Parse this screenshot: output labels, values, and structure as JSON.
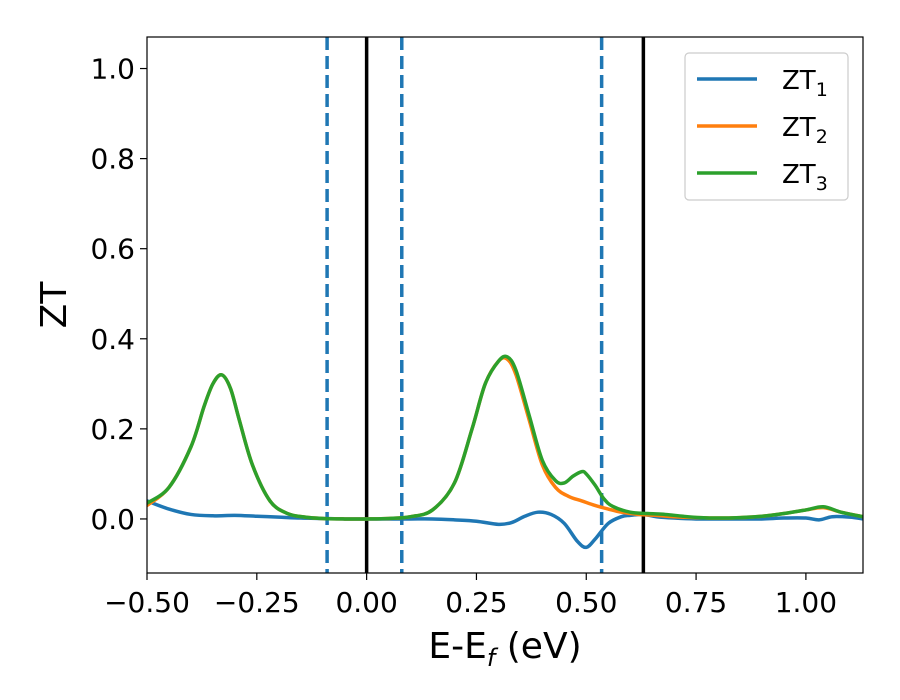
{
  "chart_data": {
    "type": "line",
    "xlabel_main": "E-E",
    "xlabel_sub": "f",
    "xlabel_unit": " (eV)",
    "ylabel": "ZT",
    "xlim": [
      -0.5,
      1.13
    ],
    "ylim": [
      -0.12,
      1.07
    ],
    "xticks": [
      -0.5,
      -0.25,
      0.0,
      0.25,
      0.5,
      0.75,
      1.0
    ],
    "xtick_labels": [
      "−0.50",
      "−0.25",
      "0.00",
      "0.25",
      "0.50",
      "0.75",
      "1.00"
    ],
    "yticks": [
      0.0,
      0.2,
      0.4,
      0.6,
      0.8,
      1.0
    ],
    "ytick_labels": [
      "0.0",
      "0.2",
      "0.4",
      "0.6",
      "0.8",
      "1.0"
    ],
    "legend_position": "top-right",
    "grid": false,
    "vertical_lines": [
      {
        "x": -0.09,
        "style": "dashed",
        "color": "#1f77b4"
      },
      {
        "x": 0.0,
        "style": "solid",
        "color": "#000000"
      },
      {
        "x": 0.08,
        "style": "dashed",
        "color": "#1f77b4"
      },
      {
        "x": 0.535,
        "style": "dashed",
        "color": "#1f77b4"
      },
      {
        "x": 0.63,
        "style": "solid",
        "color": "#000000"
      }
    ],
    "series": [
      {
        "name": "ZT",
        "name_sub": "1",
        "color": "#1f77b4",
        "x": [
          -0.5,
          -0.45,
          -0.4,
          -0.35,
          -0.3,
          -0.25,
          -0.2,
          -0.15,
          -0.1,
          -0.05,
          0.0,
          0.05,
          0.1,
          0.15,
          0.2,
          0.25,
          0.3,
          0.33,
          0.36,
          0.39,
          0.42,
          0.45,
          0.48,
          0.5,
          0.52,
          0.55,
          0.58,
          0.6,
          0.63,
          0.66,
          0.7,
          0.75,
          0.8,
          0.85,
          0.9,
          0.95,
          1.0,
          1.03,
          1.06,
          1.1,
          1.13
        ],
        "y": [
          0.04,
          0.022,
          0.01,
          0.007,
          0.008,
          0.006,
          0.004,
          0.002,
          0.001,
          0.0,
          0.0,
          0.0,
          0.0,
          0.0,
          -0.002,
          -0.005,
          -0.012,
          -0.008,
          0.006,
          0.015,
          0.01,
          -0.01,
          -0.05,
          -0.063,
          -0.045,
          -0.01,
          0.005,
          0.008,
          0.01,
          0.005,
          0.002,
          0.0,
          0.0,
          0.0,
          0.0,
          0.002,
          0.002,
          -0.002,
          0.005,
          0.004,
          0.0
        ]
      },
      {
        "name": "ZT",
        "name_sub": "2",
        "color": "#ff7f0e",
        "x": [
          -0.5,
          -0.45,
          -0.4,
          -0.37,
          -0.35,
          -0.33,
          -0.31,
          -0.29,
          -0.26,
          -0.22,
          -0.18,
          -0.14,
          -0.1,
          -0.05,
          0.0,
          0.05,
          0.1,
          0.15,
          0.2,
          0.24,
          0.27,
          0.3,
          0.32,
          0.34,
          0.37,
          0.4,
          0.43,
          0.46,
          0.49,
          0.52,
          0.55,
          0.58,
          0.62,
          0.66,
          0.7,
          0.75,
          0.8,
          0.85,
          0.9,
          0.95,
          1.0,
          1.04,
          1.08,
          1.13
        ],
        "y": [
          0.03,
          0.07,
          0.16,
          0.25,
          0.3,
          0.32,
          0.29,
          0.22,
          0.12,
          0.04,
          0.012,
          0.004,
          0.001,
          0.0,
          0.0,
          0.001,
          0.005,
          0.02,
          0.08,
          0.2,
          0.3,
          0.35,
          0.355,
          0.32,
          0.22,
          0.12,
          0.07,
          0.05,
          0.04,
          0.03,
          0.022,
          0.015,
          0.01,
          0.008,
          0.005,
          0.003,
          0.002,
          0.003,
          0.006,
          0.012,
          0.02,
          0.025,
          0.015,
          0.005
        ]
      },
      {
        "name": "ZT",
        "name_sub": "3",
        "color": "#2ca02c",
        "x": [
          -0.5,
          -0.45,
          -0.4,
          -0.37,
          -0.35,
          -0.33,
          -0.31,
          -0.29,
          -0.26,
          -0.22,
          -0.18,
          -0.14,
          -0.1,
          -0.05,
          0.0,
          0.05,
          0.1,
          0.15,
          0.2,
          0.24,
          0.27,
          0.3,
          0.32,
          0.34,
          0.37,
          0.4,
          0.43,
          0.45,
          0.47,
          0.49,
          0.5,
          0.52,
          0.54,
          0.56,
          0.6,
          0.64,
          0.68,
          0.72,
          0.76,
          0.8,
          0.85,
          0.9,
          0.95,
          1.0,
          1.04,
          1.08,
          1.13
        ],
        "y": [
          0.035,
          0.07,
          0.16,
          0.25,
          0.3,
          0.32,
          0.29,
          0.22,
          0.12,
          0.04,
          0.012,
          0.004,
          0.001,
          0.0,
          0.0,
          0.001,
          0.005,
          0.02,
          0.08,
          0.2,
          0.3,
          0.35,
          0.36,
          0.33,
          0.23,
          0.13,
          0.085,
          0.08,
          0.095,
          0.105,
          0.1,
          0.075,
          0.045,
          0.028,
          0.015,
          0.012,
          0.01,
          0.006,
          0.003,
          0.002,
          0.003,
          0.006,
          0.012,
          0.02,
          0.027,
          0.015,
          0.005
        ]
      }
    ]
  }
}
